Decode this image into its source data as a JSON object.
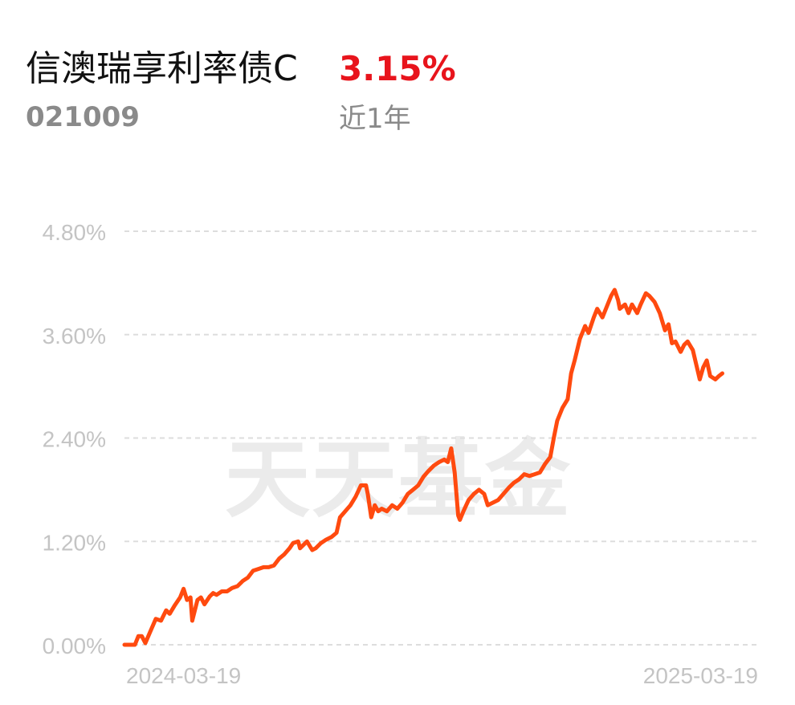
{
  "fund": {
    "name": "信澳瑞享利率债C",
    "return": "3.15%",
    "code": "021009",
    "period": "近1年"
  },
  "watermark": "天天基金",
  "colors": {
    "line": "#ff4a0f",
    "return": "#e8141c",
    "grid": "#dddddd",
    "axis_text": "#c4c4c4",
    "watermark": "#ebebeb"
  },
  "chart_data": {
    "type": "line",
    "title": "",
    "xlabel": "",
    "ylabel": "",
    "x_tick_labels": [
      "2024-03-19",
      "2025-03-19"
    ],
    "y_tick_values": [
      0.0,
      1.2,
      2.4,
      3.6,
      4.8
    ],
    "y_tick_labels": [
      "0.00%",
      "1.20%",
      "2.40%",
      "3.60%",
      "4.80%"
    ],
    "ylim": [
      0,
      4.8
    ],
    "x_range": [
      "2024-03-19",
      "2025-03-19"
    ],
    "grid": true,
    "series": [
      {
        "values": [
          [
            "2024-03-19",
            0.0
          ],
          [
            "2024-03-22",
            0.0
          ],
          [
            "2024-03-25",
            0.0
          ],
          [
            "2024-03-27",
            0.1
          ],
          [
            "2024-03-29",
            0.1
          ],
          [
            "2024-03-31",
            0.02
          ],
          [
            "2024-04-03",
            0.16
          ],
          [
            "2024-04-06",
            0.3
          ],
          [
            "2024-04-09",
            0.28
          ],
          [
            "2024-04-12",
            0.4
          ],
          [
            "2024-04-14",
            0.36
          ],
          [
            "2024-04-17",
            0.46
          ],
          [
            "2024-04-20",
            0.55
          ],
          [
            "2024-04-22",
            0.65
          ],
          [
            "2024-04-24",
            0.52
          ],
          [
            "2024-04-26",
            0.55
          ],
          [
            "2024-04-27",
            0.28
          ],
          [
            "2024-04-30",
            0.52
          ],
          [
            "2024-05-02",
            0.55
          ],
          [
            "2024-05-04",
            0.47
          ],
          [
            "2024-05-07",
            0.56
          ],
          [
            "2024-05-09",
            0.6
          ],
          [
            "2024-05-11",
            0.58
          ],
          [
            "2024-05-14",
            0.62
          ],
          [
            "2024-05-17",
            0.62
          ],
          [
            "2024-05-20",
            0.66
          ],
          [
            "2024-05-23",
            0.68
          ],
          [
            "2024-05-26",
            0.74
          ],
          [
            "2024-05-29",
            0.78
          ],
          [
            "2024-06-01",
            0.86
          ],
          [
            "2024-06-04",
            0.88
          ],
          [
            "2024-06-07",
            0.9
          ],
          [
            "2024-06-10",
            0.9
          ],
          [
            "2024-06-13",
            0.92
          ],
          [
            "2024-06-16",
            1.0
          ],
          [
            "2024-06-19",
            1.05
          ],
          [
            "2024-06-22",
            1.12
          ],
          [
            "2024-06-24",
            1.18
          ],
          [
            "2024-06-27",
            1.2
          ],
          [
            "2024-06-28",
            1.12
          ],
          [
            "2024-07-02",
            1.2
          ],
          [
            "2024-07-05",
            1.1
          ],
          [
            "2024-07-07",
            1.12
          ],
          [
            "2024-07-10",
            1.18
          ],
          [
            "2024-07-13",
            1.22
          ],
          [
            "2024-07-16",
            1.25
          ],
          [
            "2024-07-19",
            1.3
          ],
          [
            "2024-07-21",
            1.48
          ],
          [
            "2024-07-24",
            1.55
          ],
          [
            "2024-07-27",
            1.62
          ],
          [
            "2024-07-30",
            1.72
          ],
          [
            "2024-08-02",
            1.85
          ],
          [
            "2024-08-05",
            1.85
          ],
          [
            "2024-08-06",
            1.75
          ],
          [
            "2024-08-08",
            1.48
          ],
          [
            "2024-08-10",
            1.62
          ],
          [
            "2024-08-12",
            1.55
          ],
          [
            "2024-08-14",
            1.58
          ],
          [
            "2024-08-17",
            1.55
          ],
          [
            "2024-08-20",
            1.62
          ],
          [
            "2024-08-23",
            1.58
          ],
          [
            "2024-08-26",
            1.65
          ],
          [
            "2024-08-29",
            1.75
          ],
          [
            "2024-09-01",
            1.8
          ],
          [
            "2024-09-04",
            1.85
          ],
          [
            "2024-09-07",
            1.95
          ],
          [
            "2024-09-10",
            2.02
          ],
          [
            "2024-09-13",
            2.08
          ],
          [
            "2024-09-16",
            2.12
          ],
          [
            "2024-09-19",
            2.15
          ],
          [
            "2024-09-21",
            2.12
          ],
          [
            "2024-09-23",
            2.28
          ],
          [
            "2024-09-25",
            2.0
          ],
          [
            "2024-09-27",
            1.5
          ],
          [
            "2024-09-28",
            1.45
          ],
          [
            "2024-09-30",
            1.55
          ],
          [
            "2024-10-03",
            1.68
          ],
          [
            "2024-10-06",
            1.75
          ],
          [
            "2024-10-09",
            1.8
          ],
          [
            "2024-10-12",
            1.75
          ],
          [
            "2024-10-14",
            1.62
          ],
          [
            "2024-10-17",
            1.65
          ],
          [
            "2024-10-20",
            1.68
          ],
          [
            "2024-10-23",
            1.75
          ],
          [
            "2024-10-26",
            1.82
          ],
          [
            "2024-10-29",
            1.88
          ],
          [
            "2024-11-01",
            1.92
          ],
          [
            "2024-11-04",
            1.98
          ],
          [
            "2024-11-07",
            1.96
          ],
          [
            "2024-11-10",
            1.98
          ],
          [
            "2024-11-13",
            2.0
          ],
          [
            "2024-11-16",
            2.1
          ],
          [
            "2024-11-19",
            2.18
          ],
          [
            "2024-11-21",
            2.4
          ],
          [
            "2024-11-23",
            2.6
          ],
          [
            "2024-11-26",
            2.75
          ],
          [
            "2024-11-29",
            2.85
          ],
          [
            "2024-12-01",
            3.15
          ],
          [
            "2024-12-03",
            3.3
          ],
          [
            "2024-12-06",
            3.55
          ],
          [
            "2024-12-09",
            3.7
          ],
          [
            "2024-12-11",
            3.62
          ],
          [
            "2024-12-14",
            3.8
          ],
          [
            "2024-12-16",
            3.9
          ],
          [
            "2024-12-19",
            3.8
          ],
          [
            "2024-12-22",
            3.95
          ],
          [
            "2024-12-24",
            4.05
          ],
          [
            "2024-12-26",
            4.12
          ],
          [
            "2024-12-28",
            4.0
          ],
          [
            "2024-12-29",
            3.9
          ],
          [
            "2025-01-01",
            3.95
          ],
          [
            "2025-01-03",
            3.85
          ],
          [
            "2025-01-05",
            3.95
          ],
          [
            "2025-01-08",
            3.85
          ],
          [
            "2025-01-10",
            3.95
          ],
          [
            "2025-01-13",
            4.08
          ],
          [
            "2025-01-15",
            4.05
          ],
          [
            "2025-01-18",
            3.98
          ],
          [
            "2025-01-21",
            3.85
          ],
          [
            "2025-01-24",
            3.65
          ],
          [
            "2025-01-26",
            3.72
          ],
          [
            "2025-01-28",
            3.5
          ],
          [
            "2025-01-30",
            3.52
          ],
          [
            "2025-02-02",
            3.4
          ],
          [
            "2025-02-04",
            3.48
          ],
          [
            "2025-02-06",
            3.52
          ],
          [
            "2025-02-09",
            3.42
          ],
          [
            "2025-02-11",
            3.25
          ],
          [
            "2025-02-13",
            3.08
          ],
          [
            "2025-02-15",
            3.22
          ],
          [
            "2025-02-17",
            3.3
          ],
          [
            "2025-02-19",
            3.12
          ],
          [
            "2025-02-22",
            3.08
          ],
          [
            "2025-02-24",
            3.12
          ],
          [
            "2025-02-26",
            3.15
          ]
        ]
      }
    ]
  }
}
